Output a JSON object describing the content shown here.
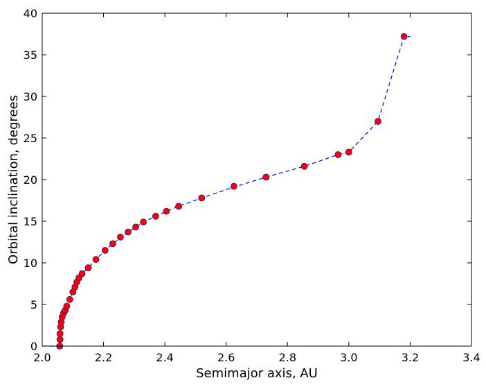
{
  "chart_data": {
    "type": "line",
    "title": "",
    "xlabel": "Semimajor axis, AU",
    "ylabel": "Orbital inclination, degrees",
    "xlim": [
      2.0,
      3.4
    ],
    "ylim": [
      0,
      40
    ],
    "xticks": [
      "2.0",
      "2.2",
      "2.4",
      "2.6",
      "2.8",
      "3.0",
      "3.2",
      "3.4"
    ],
    "yticks": [
      "0",
      "5",
      "10",
      "15",
      "20",
      "25",
      "30",
      "35",
      "40"
    ],
    "grid": false,
    "line": {
      "style": "dashed",
      "color": "#0000ff",
      "x": [
        2.0,
        2.04,
        2.055,
        2.056,
        2.058,
        2.06,
        2.062,
        2.065,
        2.07,
        2.075,
        2.08,
        2.09,
        2.1,
        2.107,
        2.113,
        2.12,
        2.13,
        2.15,
        2.175,
        2.205,
        2.23,
        2.255,
        2.28,
        2.305,
        2.33,
        2.37,
        2.405,
        2.445,
        2.52,
        2.625,
        2.73,
        2.855,
        2.965,
        3.0,
        3.095,
        3.18,
        3.2
      ],
      "y": [
        0.0,
        0.0,
        0.0,
        0.7,
        1.5,
        2.2,
        2.9,
        3.5,
        4.0,
        4.3,
        4.8,
        5.6,
        6.5,
        7.1,
        7.7,
        8.2,
        8.7,
        9.4,
        10.4,
        11.5,
        12.3,
        13.0,
        13.7,
        14.3,
        14.9,
        15.6,
        16.2,
        16.8,
        17.8,
        19.1,
        20.3,
        21.6,
        23.0,
        23.3,
        27.0,
        37.2,
        37.2
      ]
    },
    "markers": {
      "color": "#ff0000",
      "edge_color": "#1a1a80",
      "x": [
        2.057,
        2.058,
        2.058,
        2.06,
        2.062,
        2.065,
        2.07,
        2.075,
        2.08,
        2.09,
        2.1,
        2.107,
        2.113,
        2.12,
        2.13,
        2.15,
        2.175,
        2.205,
        2.23,
        2.255,
        2.28,
        2.305,
        2.33,
        2.37,
        2.405,
        2.445,
        2.52,
        2.625,
        2.73,
        2.855,
        2.965,
        3.0,
        3.095,
        3.18
      ],
      "y": [
        0.0,
        0.8,
        1.5,
        2.3,
        2.9,
        3.5,
        4.0,
        4.3,
        4.8,
        5.6,
        6.5,
        7.1,
        7.7,
        8.2,
        8.7,
        9.4,
        10.4,
        11.5,
        12.3,
        13.1,
        13.7,
        14.3,
        14.9,
        15.6,
        16.2,
        16.8,
        17.8,
        19.2,
        20.3,
        21.6,
        23.0,
        23.3,
        27.0,
        37.2
      ]
    }
  }
}
